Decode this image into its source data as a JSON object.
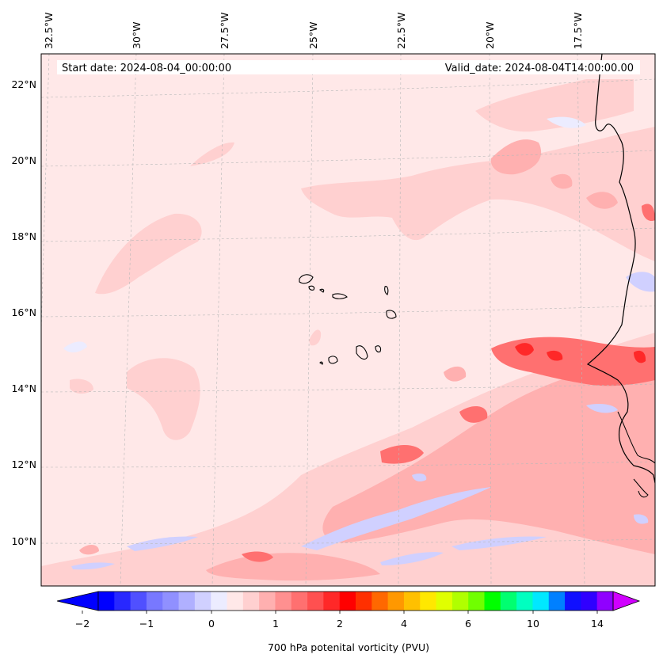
{
  "map": {
    "start_date": "Start date: 2024-08-04_00:00:00",
    "valid_date": "Valid_date: 2024-08-04T14:00:00.00",
    "lon_labels": [
      "32.5°W",
      "30°W",
      "27.5°W",
      "25°W",
      "22.5°W",
      "20°W",
      "17.5°W"
    ],
    "lat_labels": [
      "22°N",
      "20°N",
      "18°N",
      "16°N",
      "14°N",
      "12°N",
      "10°N"
    ],
    "background_color": "#ffe8e8",
    "coast_color": "#000000"
  },
  "colorbar": {
    "title": "700 hPa potenital vorticity (PVU)",
    "tick_labels": [
      "−2",
      "−1",
      "0",
      "1",
      "2",
      "4",
      "6",
      "10",
      "14"
    ],
    "colors": [
      "#0000ff",
      "#2828ff",
      "#5050ff",
      "#7878ff",
      "#9090ff",
      "#b0b0ff",
      "#d0d0ff",
      "#ececff",
      "#ffe8e8",
      "#ffd0d0",
      "#ffb0b0",
      "#ff9090",
      "#ff7070",
      "#ff5050",
      "#ff2828",
      "#ff0000",
      "#ff3000",
      "#ff6800",
      "#ff9800",
      "#ffc000",
      "#ffe800",
      "#e0ff00",
      "#b0ff00",
      "#70ff00",
      "#00ff00",
      "#00ff70",
      "#00ffc0",
      "#00e8ff",
      "#0080ff",
      "#1010ff",
      "#3000ff",
      "#9000ff"
    ],
    "under_color": "#0000ff",
    "over_color": "#d000ff"
  }
}
